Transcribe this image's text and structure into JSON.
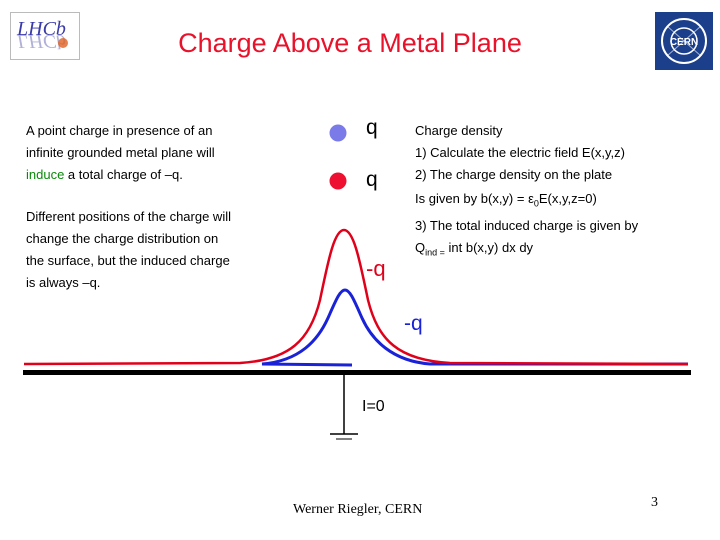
{
  "header": {
    "title": "Charge Above a Metal Plane",
    "logo_left_text": "LHCb",
    "logo_right_text": "CERN"
  },
  "left_text": {
    "line1": "A point charge in presence of an",
    "line2": "infinite grounded metal plane will",
    "line3_green": "induce",
    "line3_rest": " a total charge of –q.",
    "para2": [
      "Different positions of the charge will",
      "change the charge distribution on",
      "the surface, but the induced charge",
      "is always –q."
    ]
  },
  "charges": {
    "blue_label": "q",
    "red_label": "q",
    "red_induced": "-q",
    "blue_induced": "-q"
  },
  "right_text": {
    "lines": [
      "Charge density",
      "1) Calculate the electric field E(x,y,z)",
      "2) The charge density on the plate"
    ],
    "line4_prefix": "Is given by b(x,y) = ε",
    "line4_sub": "0",
    "line4_suffix": "E(x,y,z=0)",
    "line5": "3) The total induced charge is given by",
    "line6_prefix": "Q",
    "line6_sub": "ind =",
    "line6_suffix": " int b(x,y) dx dy"
  },
  "ground": {
    "current_label": "I=0"
  },
  "footer": {
    "author": "Werner Riegler, CERN",
    "page": "3"
  },
  "colors": {
    "title": "#e8122a",
    "blue": "#1a22d8",
    "red": "#e0001a",
    "green": "#0a8a0a"
  }
}
